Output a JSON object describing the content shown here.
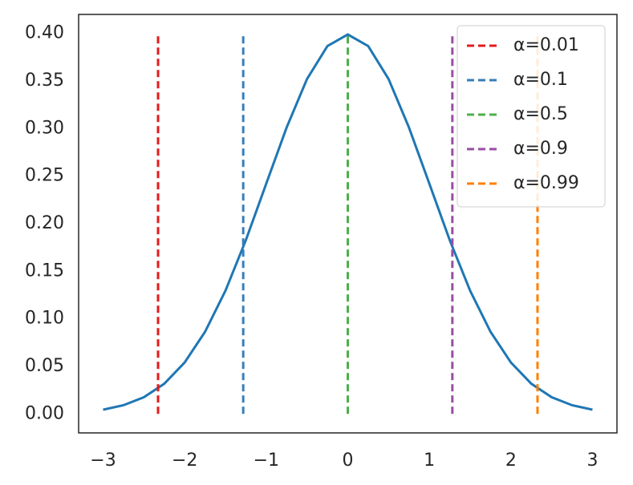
{
  "chart_data": {
    "type": "line",
    "xlim": [
      -3.3,
      3.3
    ],
    "ylim": [
      -0.02,
      0.42
    ],
    "xticks": [
      {
        "value": -3,
        "label": "−3"
      },
      {
        "value": -2,
        "label": "−2"
      },
      {
        "value": -1,
        "label": "−1"
      },
      0,
      1,
      2,
      3
    ],
    "yticks": [
      {
        "value": 0,
        "label": "0.00"
      },
      {
        "value": 0.05,
        "label": "0.05"
      },
      {
        "value": 0.1,
        "label": "0.10"
      },
      {
        "value": 0.15,
        "label": "0.15"
      },
      {
        "value": 0.2,
        "label": "0.20"
      },
      {
        "value": 0.25,
        "label": "0.25"
      },
      {
        "value": 0.3,
        "label": "0.30"
      },
      {
        "value": 0.35,
        "label": "0.35"
      },
      {
        "value": 0.4,
        "label": "0.40"
      }
    ],
    "grid": false,
    "legend": "upper right",
    "series": [
      {
        "color": "#1f77b4",
        "x": [
          -3,
          -2.75,
          -2.5,
          -2.25,
          -2,
          -1.75,
          -1.5,
          -1.25,
          -1,
          -0.75,
          -0.5,
          -0.25,
          0,
          0.25,
          0.5,
          0.75,
          1,
          1.25,
          1.5,
          1.75,
          2,
          2.25,
          2.5,
          2.75,
          3
        ],
        "values": [
          0.0044,
          0.0091,
          0.0175,
          0.0317,
          0.054,
          0.0863,
          0.1295,
          0.1826,
          0.242,
          0.3011,
          0.3521,
          0.3867,
          0.3989,
          0.3867,
          0.3521,
          0.3011,
          0.242,
          0.1826,
          0.1295,
          0.0863,
          0.054,
          0.0317,
          0.0175,
          0.0091,
          0.0044
        ]
      },
      {
        "name": "α=0.01",
        "color": "#e41a1c",
        "dashed": true,
        "x": [
          -2.326,
          -2.326
        ],
        "values": [
          0,
          0.4
        ]
      },
      {
        "name": "α=0.1",
        "color": "#377eb8",
        "dashed": true,
        "x": [
          -1.282,
          -1.282
        ],
        "values": [
          0,
          0.4
        ]
      },
      {
        "name": "α=0.5",
        "color": "#4daf4a",
        "dashed": true,
        "x": [
          0,
          0
        ],
        "values": [
          0,
          0.4
        ]
      },
      {
        "name": "α=0.9",
        "color": "#984ea3",
        "dashed": true,
        "x": [
          1.282,
          1.282
        ],
        "values": [
          0,
          0.4
        ]
      },
      {
        "name": "α=0.99",
        "color": "#ff7f00",
        "dashed": true,
        "x": [
          2.326,
          2.326
        ],
        "values": [
          0,
          0.4
        ]
      }
    ]
  }
}
